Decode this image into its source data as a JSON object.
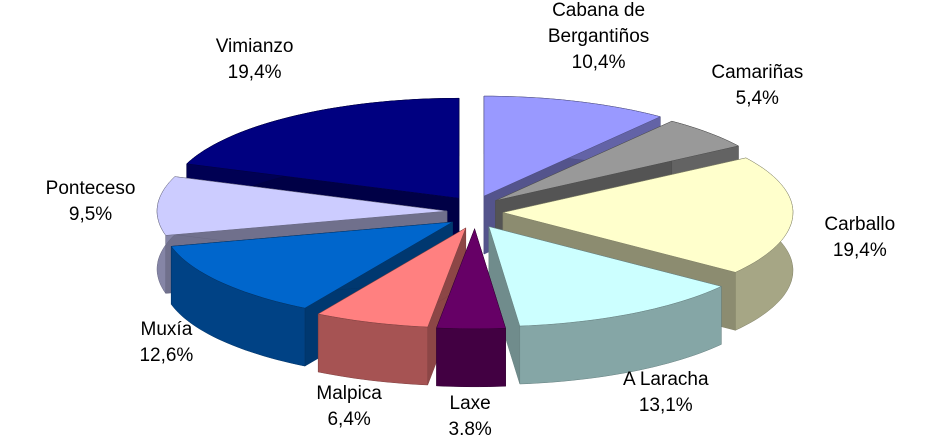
{
  "chart_data": {
    "type": "pie",
    "categories": [
      "Cabana de Bergantiños",
      "Camariñas",
      "Carballo",
      "A Laracha",
      "Laxe",
      "Malpica",
      "Muxía",
      "Ponteceso",
      "Vimianzo"
    ],
    "values": [
      10.4,
      5.4,
      19.4,
      13.1,
      3.8,
      6.4,
      12.6,
      9.5,
      19.4
    ],
    "value_labels": [
      "10,4%",
      "5,4%",
      "19,4%",
      "13,1%",
      "3.8%",
      "6,4%",
      "12,6%",
      "9,5%",
      "19,4%"
    ],
    "colors": [
      "#9999ff",
      "#999999",
      "#ffffcc",
      "#ccffff",
      "#660066",
      "#ff8080",
      "#0066cc",
      "#ccccff",
      "#000080"
    ]
  }
}
